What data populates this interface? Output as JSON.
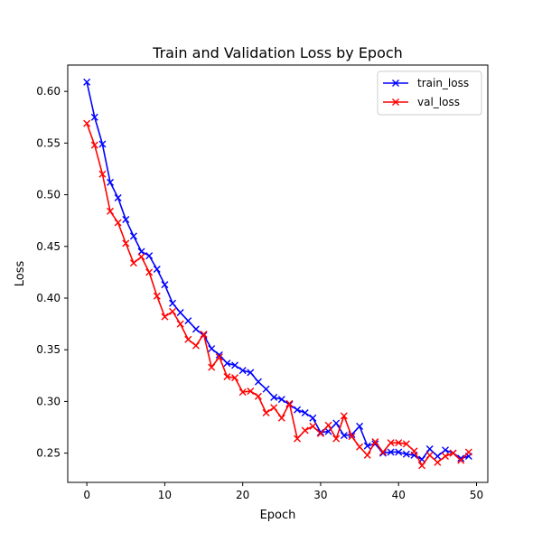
{
  "chart_data": {
    "type": "line",
    "title": "Train and Validation Loss by Epoch",
    "xlabel": "Epoch",
    "ylabel": "Loss",
    "xlim": [
      -2.45,
      51.45
    ],
    "ylim": [
      0.2217,
      0.6255
    ],
    "xticks": [
      0,
      10,
      20,
      30,
      40,
      50
    ],
    "yticks": [
      0.25,
      0.3,
      0.35,
      0.4,
      0.45,
      0.5,
      0.55,
      0.6
    ],
    "grid": false,
    "legend": "top-right",
    "x": [
      0,
      1,
      2,
      3,
      4,
      5,
      6,
      7,
      8,
      9,
      10,
      11,
      12,
      13,
      14,
      15,
      16,
      17,
      18,
      19,
      20,
      21,
      22,
      23,
      24,
      25,
      26,
      27,
      28,
      29,
      30,
      31,
      32,
      33,
      34,
      35,
      36,
      37,
      38,
      39,
      40,
      41,
      42,
      43,
      44,
      45,
      46,
      47,
      48,
      49
    ],
    "series": [
      {
        "name": "train_loss",
        "color": "#0000ff",
        "marker": "x",
        "values": [
          0.609,
          0.575,
          0.549,
          0.512,
          0.497,
          0.476,
          0.46,
          0.445,
          0.441,
          0.428,
          0.413,
          0.395,
          0.386,
          0.378,
          0.37,
          0.364,
          0.351,
          0.345,
          0.337,
          0.335,
          0.33,
          0.328,
          0.319,
          0.312,
          0.304,
          0.302,
          0.297,
          0.292,
          0.289,
          0.284,
          0.27,
          0.271,
          0.279,
          0.267,
          0.268,
          0.276,
          0.257,
          0.259,
          0.25,
          0.251,
          0.251,
          0.249,
          0.248,
          0.244,
          0.254,
          0.247,
          0.253,
          0.25,
          0.245,
          0.247
        ]
      },
      {
        "name": "val_loss",
        "color": "#ff0000",
        "marker": "x",
        "values": [
          0.569,
          0.548,
          0.52,
          0.484,
          0.473,
          0.453,
          0.434,
          0.44,
          0.425,
          0.402,
          0.382,
          0.387,
          0.375,
          0.36,
          0.354,
          0.365,
          0.333,
          0.343,
          0.324,
          0.323,
          0.309,
          0.31,
          0.305,
          0.289,
          0.294,
          0.284,
          0.298,
          0.264,
          0.272,
          0.276,
          0.269,
          0.277,
          0.264,
          0.286,
          0.266,
          0.256,
          0.248,
          0.261,
          0.251,
          0.26,
          0.26,
          0.259,
          0.252,
          0.238,
          0.248,
          0.241,
          0.247,
          0.25,
          0.243,
          0.251
        ]
      }
    ]
  }
}
